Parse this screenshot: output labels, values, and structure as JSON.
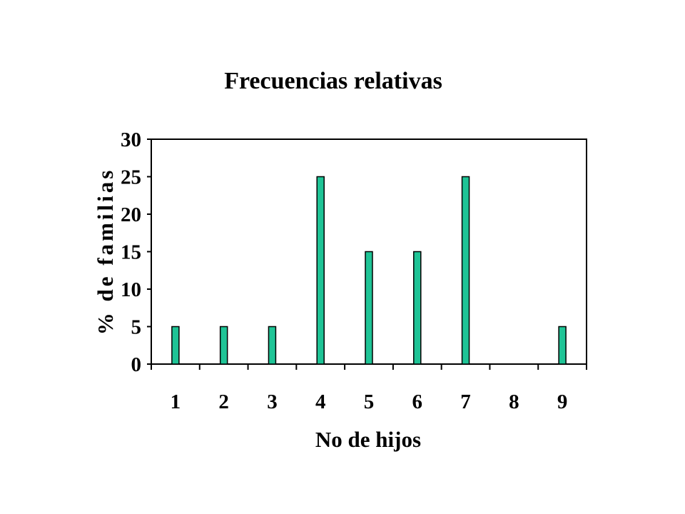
{
  "chart_data": {
    "type": "bar",
    "title": "Frecuencias relativas",
    "xlabel": "No de hijos",
    "ylabel": "% de familias",
    "categories": [
      "1",
      "2",
      "3",
      "4",
      "5",
      "6",
      "7",
      "8",
      "9"
    ],
    "values": [
      5,
      5,
      5,
      25,
      15,
      15,
      25,
      0,
      5
    ],
    "ylim": [
      0,
      30
    ],
    "yticks": [
      "0",
      "5",
      "10",
      "15",
      "20",
      "25",
      "30"
    ],
    "grid": false,
    "legend": "none",
    "colors": {
      "bar_fill": "#1fc496",
      "bar_stroke": "#000000",
      "axis": "#000000"
    }
  }
}
